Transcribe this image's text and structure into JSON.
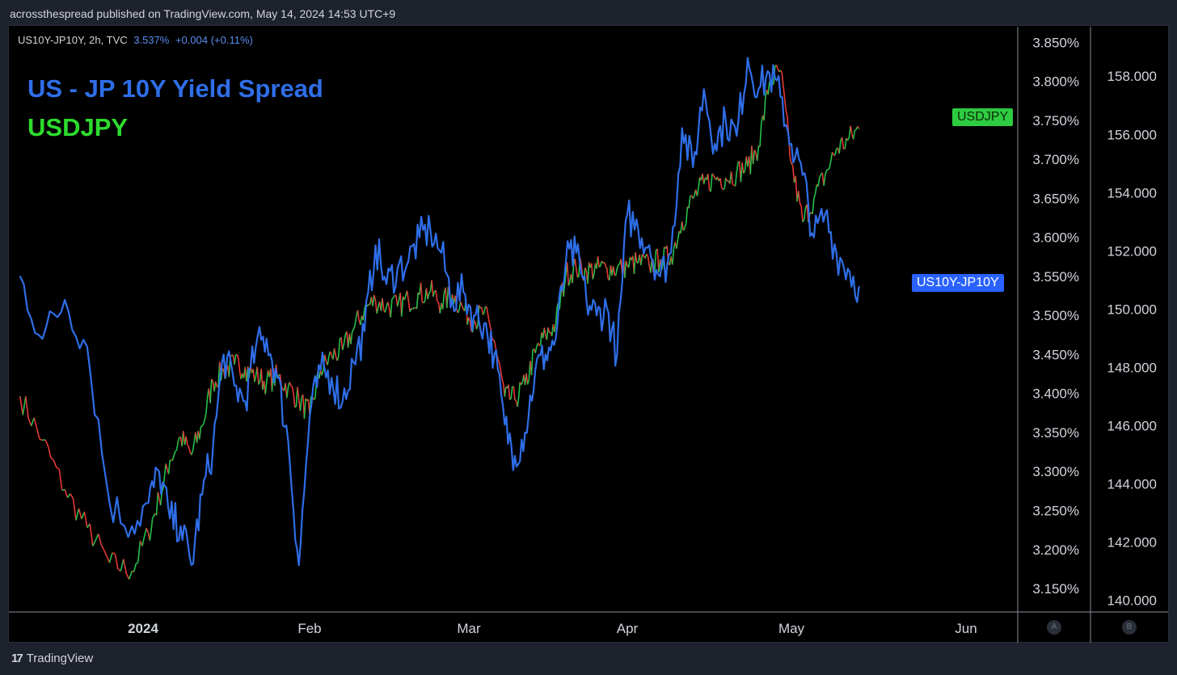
{
  "attribution": "acrossthespread published on TradingView.com, May 14, 2024 14:53 UTC+9",
  "legend": {
    "symbol": "US10Y-JP10Y, 2h, TVC",
    "value": "3.537%",
    "change": "+0.004 (+0.11%)"
  },
  "footer": {
    "brand": "TradingView"
  },
  "corners": {
    "left": "A",
    "right": "B"
  },
  "colors": {
    "spread_line": "#2f6ee8",
    "usdjpy_up": "#26c04a",
    "usdjpy_down": "#e53935",
    "background": "#000000",
    "frame": "#1e222d"
  },
  "chart_data": {
    "type": "line",
    "title": "US - JP  10Y Yield Spread",
    "subtitle": "USDJPY",
    "x_tick_labels": [
      "2024",
      "Feb",
      "Mar",
      "Apr",
      "May",
      "Jun"
    ],
    "y_left_axis_side": "right",
    "y_left_ticks": [
      "3.150%",
      "3.200%",
      "3.250%",
      "3.300%",
      "3.350%",
      "3.400%",
      "3.450%",
      "3.500%",
      "3.550%",
      "3.600%",
      "3.650%",
      "3.700%",
      "3.750%",
      "3.800%",
      "3.850%"
    ],
    "y_left_range": [
      3.12,
      3.87
    ],
    "y_right_ticks": [
      "140.000",
      "142.000",
      "144.000",
      "146.000",
      "148.000",
      "150.000",
      "152.000",
      "154.000",
      "156.000",
      "158.000"
    ],
    "y_right_range": [
      139.6,
      159.7
    ],
    "series": [
      {
        "name": "US10Y-JP10Y",
        "axis": "left",
        "x": [
          "2023-12-21",
          "2023-12-23",
          "2023-12-25",
          "2023-12-27",
          "2023-12-29",
          "2023-12-31",
          "2024-01-02",
          "2024-01-04",
          "2024-01-06",
          "2024-01-08",
          "2024-01-10",
          "2024-01-12",
          "2024-01-14",
          "2024-01-16",
          "2024-01-18",
          "2024-01-20",
          "2024-01-22",
          "2024-01-24",
          "2024-01-26",
          "2024-01-28",
          "2024-01-30",
          "2024-02-01",
          "2024-02-03",
          "2024-02-05",
          "2024-02-07",
          "2024-02-09",
          "2024-02-11",
          "2024-02-13",
          "2024-02-15",
          "2024-02-17",
          "2024-02-19",
          "2024-02-21",
          "2024-02-23",
          "2024-02-25",
          "2024-02-27",
          "2024-02-29",
          "2024-03-02",
          "2024-03-04",
          "2024-03-06",
          "2024-03-08",
          "2024-03-10",
          "2024-03-12",
          "2024-03-14",
          "2024-03-16",
          "2024-03-18",
          "2024-03-20",
          "2024-03-22",
          "2024-03-24",
          "2024-03-26",
          "2024-03-28",
          "2024-03-30",
          "2024-04-01",
          "2024-04-03",
          "2024-04-05",
          "2024-04-07",
          "2024-04-09",
          "2024-04-11",
          "2024-04-13",
          "2024-04-15",
          "2024-04-17",
          "2024-04-19",
          "2024-04-21",
          "2024-04-23",
          "2024-04-25",
          "2024-04-27",
          "2024-04-29",
          "2024-05-01",
          "2024-05-03",
          "2024-05-05",
          "2024-05-07",
          "2024-05-09",
          "2024-05-11",
          "2024-05-13"
        ],
        "values": [
          3.55,
          3.47,
          3.52,
          3.46,
          3.26,
          3.23,
          3.26,
          3.3,
          3.24,
          3.23,
          3.18,
          3.27,
          3.33,
          3.45,
          3.41,
          3.39,
          3.46,
          3.47,
          3.42,
          3.34,
          3.18,
          3.37,
          3.43,
          3.42,
          3.39,
          3.44,
          3.48,
          3.59,
          3.54,
          3.56,
          3.57,
          3.6,
          3.61,
          3.58,
          3.52,
          3.53,
          3.5,
          3.49,
          3.45,
          3.36,
          3.32,
          3.35,
          3.43,
          3.45,
          3.47,
          3.57,
          3.58,
          3.52,
          3.5,
          3.51,
          3.45,
          3.63,
          3.61,
          3.59,
          3.55,
          3.58,
          3.74,
          3.69,
          3.79,
          3.72,
          3.75,
          3.73,
          3.83,
          3.79,
          3.81,
          3.78,
          3.72,
          3.68,
          3.6,
          3.63,
          3.58,
          3.56,
          3.537
        ]
      },
      {
        "name": "USDJPY",
        "axis": "right",
        "x": [
          "2023-12-21",
          "2023-12-23",
          "2023-12-25",
          "2023-12-27",
          "2023-12-29",
          "2023-12-31",
          "2024-01-02",
          "2024-01-04",
          "2024-01-06",
          "2024-01-08",
          "2024-01-10",
          "2024-01-12",
          "2024-01-14",
          "2024-01-16",
          "2024-01-18",
          "2024-01-20",
          "2024-01-22",
          "2024-01-24",
          "2024-01-26",
          "2024-01-28",
          "2024-01-30",
          "2024-02-01",
          "2024-02-03",
          "2024-02-05",
          "2024-02-07",
          "2024-02-09",
          "2024-02-11",
          "2024-02-13",
          "2024-02-15",
          "2024-02-17",
          "2024-02-19",
          "2024-02-21",
          "2024-02-23",
          "2024-02-25",
          "2024-02-27",
          "2024-02-29",
          "2024-03-02",
          "2024-03-04",
          "2024-03-06",
          "2024-03-08",
          "2024-03-10",
          "2024-03-12",
          "2024-03-14",
          "2024-03-16",
          "2024-03-18",
          "2024-03-20",
          "2024-03-22",
          "2024-03-24",
          "2024-03-26",
          "2024-03-28",
          "2024-03-30",
          "2024-04-01",
          "2024-04-03",
          "2024-04-05",
          "2024-04-07",
          "2024-04-09",
          "2024-04-11",
          "2024-04-13",
          "2024-04-15",
          "2024-04-17",
          "2024-04-19",
          "2024-04-21",
          "2024-04-23",
          "2024-04-25",
          "2024-04-27",
          "2024-04-29",
          "2024-05-01",
          "2024-05-03",
          "2024-05-05",
          "2024-05-07",
          "2024-05-09",
          "2024-05-11",
          "2024-05-13"
        ],
        "values": [
          147.0,
          145.5,
          143.8,
          142.5,
          141.3,
          141.0,
          142.3,
          143.5,
          144.8,
          145.6,
          145.0,
          146.0,
          147.5,
          147.9,
          148.1,
          148.0,
          147.7,
          147.5,
          147.7,
          147.3,
          146.9,
          146.4,
          147.9,
          148.4,
          148.6,
          149.3,
          150.0,
          150.3,
          150.1,
          150.1,
          150.3,
          150.5,
          150.6,
          150.2,
          150.5,
          150.0,
          149.6,
          149.9,
          148.9,
          147.0,
          146.9,
          147.4,
          148.5,
          149.1,
          149.5,
          151.2,
          151.4,
          151.3,
          151.4,
          151.4,
          151.4,
          151.5,
          151.6,
          151.5,
          151.7,
          151.8,
          153.0,
          153.8,
          154.3,
          154.5,
          154.5,
          154.7,
          154.9,
          155.6,
          157.8,
          158.2,
          155.0,
          153.0,
          153.8,
          154.6,
          155.5,
          155.8,
          156.2
        ]
      }
    ],
    "grid": false,
    "legend": "top-left"
  }
}
